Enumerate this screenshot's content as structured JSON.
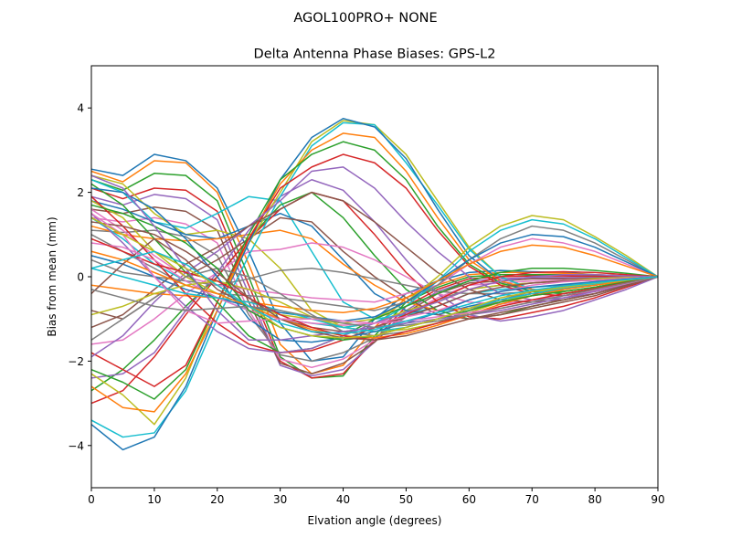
{
  "figure": {
    "suptitle": "AGOL100PRO+     NONE"
  },
  "chart_data": {
    "type": "line",
    "title": "Delta Antenna Phase Biases: GPS-L2",
    "xlabel": "Elvation angle (degrees)",
    "ylabel": "Bias from mean (mm)",
    "xlim": [
      0,
      90
    ],
    "ylim": [
      -5,
      5
    ],
    "xticks": [
      0,
      10,
      20,
      30,
      40,
      50,
      60,
      70,
      80,
      90
    ],
    "yticks": [
      -4,
      -2,
      0,
      2,
      4
    ],
    "grid": false,
    "legend": "none",
    "x": [
      0,
      5,
      10,
      15,
      20,
      25,
      30,
      35,
      40,
      45,
      50,
      55,
      60,
      65,
      70,
      75,
      80,
      85,
      90
    ],
    "palette": [
      "#1f77b4",
      "#ff7f0e",
      "#2ca02c",
      "#d62728",
      "#9467bd",
      "#8c564b",
      "#e377c2",
      "#7f7f7f",
      "#bcbd22",
      "#17becf"
    ],
    "series": [
      {
        "values": [
          2.55,
          2.4,
          2.9,
          2.75,
          2.1,
          0.6,
          -1.1,
          -2.0,
          -1.9,
          -1.0,
          -0.4,
          -0.1,
          0.1,
          0.15,
          0.12,
          0.1,
          0.05,
          0.02,
          0.0
        ]
      },
      {
        "values": [
          2.5,
          2.25,
          2.75,
          2.7,
          2.0,
          0.3,
          -1.6,
          -2.3,
          -2.1,
          -1.2,
          -0.5,
          -0.2,
          0.05,
          0.1,
          0.1,
          0.08,
          0.05,
          0.02,
          0.0
        ]
      },
      {
        "values": [
          2.3,
          2.05,
          2.45,
          2.4,
          1.8,
          0.0,
          -1.9,
          -2.4,
          -2.35,
          -1.4,
          -0.6,
          -0.25,
          0.0,
          0.05,
          0.05,
          0.05,
          0.03,
          0.01,
          0.0
        ]
      },
      {
        "values": [
          2.1,
          1.85,
          2.1,
          2.05,
          1.55,
          -0.2,
          -2.0,
          -2.4,
          -2.3,
          -1.5,
          -0.7,
          -0.3,
          -0.05,
          0.0,
          0.02,
          0.02,
          0.01,
          0.0,
          0.0
        ]
      },
      {
        "values": [
          1.9,
          1.7,
          1.95,
          1.85,
          1.35,
          -0.4,
          -2.1,
          -2.35,
          -2.2,
          -1.55,
          -0.8,
          -0.35,
          -0.1,
          -0.05,
          -0.02,
          -0.02,
          -0.02,
          -0.01,
          0.0
        ]
      },
      {
        "values": [
          1.6,
          1.5,
          1.65,
          1.55,
          1.1,
          -0.6,
          -2.05,
          -2.3,
          -2.05,
          -1.55,
          -0.85,
          -0.4,
          -0.15,
          -0.1,
          -0.05,
          -0.05,
          -0.03,
          -0.02,
          0.0
        ]
      },
      {
        "values": [
          1.4,
          1.3,
          1.4,
          1.25,
          0.8,
          -0.8,
          -1.95,
          -2.15,
          -1.95,
          -1.5,
          -0.9,
          -0.5,
          -0.2,
          -0.15,
          -0.1,
          -0.08,
          -0.05,
          -0.02,
          0.0
        ]
      },
      {
        "values": [
          1.1,
          1.05,
          1.1,
          0.95,
          0.5,
          -0.9,
          -1.85,
          -2.0,
          -1.8,
          -1.45,
          -0.95,
          -0.55,
          -0.3,
          -0.2,
          -0.15,
          -0.1,
          -0.08,
          -0.04,
          0.0
        ]
      },
      {
        "values": [
          2.4,
          2.2,
          1.5,
          1.0,
          1.1,
          0.9,
          0.2,
          -0.8,
          -1.2,
          -1.1,
          -0.8,
          -0.6,
          -0.3,
          -0.2,
          -0.15,
          -0.1,
          -0.05,
          -0.02,
          0.0
        ]
      },
      {
        "values": [
          2.3,
          2.0,
          1.3,
          1.15,
          1.5,
          1.9,
          1.8,
          0.6,
          -0.6,
          -1.0,
          -0.9,
          -0.7,
          -0.4,
          -0.3,
          -0.25,
          -0.2,
          -0.15,
          -0.08,
          0.0
        ]
      },
      {
        "values": [
          1.8,
          1.6,
          1.3,
          1.0,
          0.9,
          1.2,
          1.5,
          1.2,
          0.4,
          -0.4,
          -0.8,
          -0.9,
          -0.7,
          -0.55,
          -0.4,
          -0.3,
          -0.2,
          -0.1,
          0.0
        ]
      },
      {
        "values": [
          1.2,
          1.0,
          0.9,
          0.85,
          0.9,
          1.0,
          1.1,
          0.9,
          0.3,
          -0.2,
          -0.6,
          -0.8,
          -0.75,
          -0.6,
          -0.45,
          -0.35,
          -0.25,
          -0.12,
          0.0
        ]
      },
      {
        "values": [
          -2.7,
          -2.2,
          -1.5,
          -0.7,
          0.0,
          0.9,
          1.7,
          2.0,
          1.4,
          0.5,
          -0.3,
          -0.8,
          -1.0,
          -0.9,
          -0.7,
          -0.55,
          -0.4,
          -0.2,
          0.0
        ]
      },
      {
        "values": [
          -3.0,
          -2.7,
          -1.9,
          -0.9,
          0.0,
          0.9,
          1.6,
          2.0,
          1.8,
          1.0,
          0.1,
          -0.6,
          -0.95,
          -1.0,
          -0.85,
          -0.7,
          -0.5,
          -0.25,
          0.0
        ]
      },
      {
        "values": [
          -2.4,
          -2.3,
          -1.8,
          -0.8,
          0.1,
          1.1,
          1.9,
          2.3,
          2.05,
          1.3,
          0.4,
          -0.4,
          -0.9,
          -1.05,
          -0.95,
          -0.8,
          -0.55,
          -0.3,
          0.0
        ]
      },
      {
        "values": [
          -0.8,
          -1.0,
          -0.5,
          0.0,
          0.4,
          0.9,
          1.4,
          1.3,
          0.6,
          0.0,
          -0.5,
          -0.9,
          -1.0,
          -0.9,
          -0.75,
          -0.6,
          -0.45,
          -0.22,
          0.0
        ]
      },
      {
        "values": [
          -1.6,
          -1.5,
          -1.0,
          -0.4,
          0.1,
          0.6,
          0.65,
          0.8,
          0.7,
          0.4,
          0.0,
          -0.4,
          -0.6,
          -0.65,
          -0.55,
          -0.45,
          -0.35,
          -0.18,
          0.0
        ]
      },
      {
        "values": [
          0.4,
          0.1,
          0.0,
          -0.1,
          -0.2,
          -0.05,
          0.15,
          0.2,
          0.1,
          -0.05,
          -0.2,
          -0.35,
          -0.4,
          -0.4,
          -0.35,
          -0.3,
          -0.2,
          -0.1,
          0.0
        ]
      },
      {
        "values": [
          -2.3,
          -2.8,
          -3.5,
          -2.4,
          -0.6,
          0.8,
          2.0,
          3.2,
          3.7,
          3.6,
          2.9,
          1.8,
          0.7,
          0.0,
          -0.3,
          -0.35,
          -0.25,
          -0.12,
          0.0
        ]
      },
      {
        "values": [
          -3.4,
          -3.8,
          -3.7,
          -2.7,
          -1.0,
          0.5,
          1.9,
          3.1,
          3.65,
          3.6,
          2.7,
          1.7,
          0.65,
          0.0,
          -0.3,
          -0.35,
          -0.25,
          -0.12,
          0.0
        ]
      },
      {
        "values": [
          -3.5,
          -4.1,
          -3.8,
          -2.6,
          -0.8,
          0.8,
          2.3,
          3.3,
          3.75,
          3.55,
          2.8,
          1.6,
          0.5,
          -0.1,
          -0.35,
          -0.4,
          -0.3,
          -0.15,
          0.0
        ]
      },
      {
        "values": [
          -2.6,
          -3.1,
          -3.2,
          -2.3,
          -0.8,
          0.9,
          2.2,
          3.0,
          3.4,
          3.3,
          2.5,
          1.4,
          0.4,
          -0.1,
          -0.3,
          -0.35,
          -0.25,
          -0.12,
          0.0
        ]
      },
      {
        "values": [
          -2.2,
          -2.5,
          -2.9,
          -2.2,
          -0.6,
          1.0,
          2.3,
          2.9,
          3.2,
          3.0,
          2.3,
          1.2,
          0.3,
          -0.15,
          -0.35,
          -0.4,
          -0.3,
          -0.15,
          0.0
        ]
      },
      {
        "values": [
          -1.8,
          -2.2,
          -2.6,
          -2.1,
          -0.6,
          0.9,
          2.1,
          2.6,
          2.9,
          2.7,
          2.1,
          1.1,
          0.25,
          -0.2,
          -0.4,
          -0.45,
          -0.35,
          -0.18,
          0.0
        ]
      },
      {
        "values": [
          -1.9,
          -1.4,
          -0.6,
          0.1,
          0.6,
          1.2,
          1.8,
          2.5,
          2.6,
          2.1,
          1.3,
          0.6,
          0.0,
          -0.4,
          -0.55,
          -0.5,
          -0.4,
          -0.2,
          0.0
        ]
      },
      {
        "values": [
          -1.2,
          -0.9,
          -0.3,
          0.3,
          0.7,
          1.2,
          1.6,
          2.0,
          1.8,
          1.3,
          0.7,
          0.1,
          -0.3,
          -0.55,
          -0.6,
          -0.55,
          -0.4,
          -0.2,
          0.0
        ]
      },
      {
        "values": [
          1.6,
          1.1,
          0.5,
          0.0,
          -0.2,
          -0.3,
          -0.4,
          -0.5,
          -0.55,
          -0.6,
          -0.4,
          -0.2,
          0.3,
          0.7,
          0.9,
          0.8,
          0.6,
          0.3,
          0.0
        ]
      },
      {
        "values": [
          1.0,
          0.6,
          0.2,
          -0.2,
          -0.4,
          -0.45,
          -0.5,
          -0.6,
          -0.7,
          -0.8,
          -0.6,
          -0.2,
          0.4,
          0.9,
          1.2,
          1.1,
          0.8,
          0.4,
          0.0
        ]
      },
      {
        "values": [
          1.8,
          1.4,
          0.6,
          0.0,
          -0.4,
          -0.7,
          -0.9,
          -1.0,
          -1.1,
          -1.0,
          -0.6,
          0.0,
          0.7,
          1.2,
          1.45,
          1.35,
          0.95,
          0.5,
          0.0
        ]
      },
      {
        "values": [
          1.4,
          0.9,
          0.3,
          -0.1,
          -0.5,
          -0.8,
          -1.0,
          -1.1,
          -1.2,
          -1.1,
          -0.7,
          -0.1,
          0.6,
          1.1,
          1.35,
          1.25,
          0.9,
          0.45,
          0.0
        ]
      },
      {
        "values": [
          0.5,
          0.3,
          0.0,
          -0.3,
          -0.5,
          -0.7,
          -0.85,
          -0.95,
          -1.05,
          -0.95,
          -0.6,
          -0.1,
          0.4,
          0.8,
          1.0,
          0.95,
          0.7,
          0.35,
          0.0
        ]
      },
      {
        "values": [
          -0.2,
          -0.3,
          -0.4,
          -0.45,
          -0.5,
          -0.6,
          -0.7,
          -0.8,
          -0.85,
          -0.75,
          -0.5,
          -0.1,
          0.3,
          0.6,
          0.75,
          0.7,
          0.5,
          0.25,
          0.0
        ]
      },
      {
        "values": [
          2.2,
          1.7,
          0.9,
          0.1,
          -0.6,
          -1.4,
          -1.8,
          -1.7,
          -1.4,
          -1.0,
          -0.7,
          -0.4,
          -0.1,
          0.1,
          0.2,
          0.2,
          0.15,
          0.08,
          0.0
        ]
      },
      {
        "values": [
          1.9,
          1.2,
          0.4,
          -0.4,
          -1.1,
          -1.6,
          -1.8,
          -1.75,
          -1.5,
          -1.2,
          -0.9,
          -0.55,
          -0.2,
          0.0,
          0.1,
          0.12,
          0.1,
          0.05,
          0.0
        ]
      },
      {
        "values": [
          1.5,
          0.8,
          0.0,
          -0.7,
          -1.3,
          -1.7,
          -1.8,
          -1.7,
          -1.4,
          -1.1,
          -0.85,
          -0.6,
          -0.3,
          -0.1,
          0.0,
          0.05,
          0.05,
          0.02,
          0.0
        ]
      },
      {
        "values": [
          -0.4,
          0.3,
          0.9,
          0.4,
          -0.3,
          -0.7,
          -1.0,
          -1.2,
          -1.3,
          -1.2,
          -0.95,
          -0.7,
          -0.4,
          -0.25,
          -0.15,
          -0.1,
          -0.08,
          -0.04,
          0.0
        ]
      },
      {
        "values": [
          0.8,
          0.7,
          0.4,
          -0.1,
          -0.5,
          -0.8,
          -1.0,
          -1.1,
          -1.15,
          -1.1,
          -0.95,
          -0.8,
          -0.55,
          -0.35,
          -0.2,
          -0.12,
          -0.08,
          -0.04,
          0.0
        ]
      },
      {
        "values": [
          -1.5,
          -1.0,
          -0.5,
          0.0,
          0.2,
          0.0,
          -0.4,
          -0.9,
          -1.3,
          -1.4,
          -1.3,
          -1.1,
          -0.8,
          -0.55,
          -0.35,
          -0.2,
          -0.12,
          -0.06,
          0.0
        ]
      },
      {
        "values": [
          -0.9,
          -0.7,
          -0.4,
          -0.2,
          -0.1,
          -0.3,
          -0.6,
          -0.95,
          -1.2,
          -1.3,
          -1.25,
          -1.1,
          -0.85,
          -0.6,
          -0.4,
          -0.25,
          -0.15,
          -0.08,
          0.0
        ]
      },
      {
        "values": [
          0.2,
          0.0,
          -0.2,
          -0.4,
          -0.5,
          -0.6,
          -0.8,
          -1.0,
          -1.2,
          -1.3,
          -1.2,
          -1.0,
          -0.75,
          -0.55,
          -0.4,
          -0.28,
          -0.18,
          -0.09,
          0.0
        ]
      },
      {
        "values": [
          2.1,
          2.0,
          1.6,
          0.9,
          0.0,
          -1.0,
          -1.5,
          -1.55,
          -1.45,
          -1.3,
          -1.1,
          -0.85,
          -0.55,
          -0.35,
          -0.25,
          -0.18,
          -0.12,
          -0.06,
          0.0
        ]
      },
      {
        "values": [
          0.6,
          0.4,
          0.1,
          -0.2,
          -0.4,
          -0.7,
          -1.0,
          -1.25,
          -1.4,
          -1.45,
          -1.35,
          -1.15,
          -0.9,
          -0.65,
          -0.45,
          -0.3,
          -0.2,
          -0.1,
          0.0
        ]
      },
      {
        "values": [
          1.7,
          1.5,
          1.2,
          0.8,
          0.2,
          -0.8,
          -1.2,
          -1.4,
          -1.5,
          -1.4,
          -1.2,
          -1.0,
          -0.8,
          -0.6,
          -0.45,
          -0.35,
          -0.25,
          -0.12,
          0.0
        ]
      },
      {
        "values": [
          0.9,
          0.6,
          0.3,
          0.1,
          -0.1,
          -0.5,
          -0.9,
          -1.2,
          -1.4,
          -1.5,
          -1.3,
          -1.1,
          -0.9,
          -0.7,
          -0.55,
          -0.4,
          -0.28,
          -0.14,
          0.0
        ]
      },
      {
        "values": [
          2.4,
          2.1,
          1.2,
          0.2,
          -0.8,
          -1.5,
          -1.5,
          -1.4,
          -1.3,
          -1.2,
          -1.1,
          -1.0,
          -0.9,
          -0.8,
          -0.65,
          -0.5,
          -0.35,
          -0.18,
          0.0
        ]
      },
      {
        "values": [
          1.3,
          1.2,
          1.0,
          0.6,
          0.1,
          -0.5,
          -1.0,
          -1.3,
          -1.45,
          -1.5,
          -1.4,
          -1.2,
          -1.0,
          -0.85,
          -0.7,
          -0.55,
          -0.4,
          -0.2,
          0.0
        ]
      },
      {
        "values": [
          1.5,
          1.0,
          0.0,
          -0.8,
          -1.1,
          -1.05,
          -1.0,
          -1.0,
          -1.05,
          -1.1,
          -1.05,
          -0.95,
          -0.85,
          -0.75,
          -0.6,
          -0.45,
          -0.32,
          -0.16,
          0.0
        ]
      },
      {
        "values": [
          -0.3,
          -0.5,
          -0.7,
          -0.8,
          -0.75,
          -0.7,
          -0.8,
          -0.95,
          -1.1,
          -1.2,
          -1.15,
          -1.05,
          -0.9,
          -0.75,
          -0.6,
          -0.45,
          -0.3,
          -0.15,
          0.0
        ]
      },
      {
        "values": [
          1.4,
          1.0,
          0.6,
          0.2,
          -0.2,
          -0.7,
          -1.2,
          -1.4,
          -1.45,
          -1.4,
          -1.2,
          -1.0,
          -0.75,
          -0.5,
          -0.35,
          -0.25,
          -0.15,
          -0.08,
          0.0
        ]
      },
      {
        "values": [
          0.2,
          0.4,
          0.6,
          0.3,
          -0.2,
          -0.7,
          -1.1,
          -1.3,
          -1.35,
          -1.25,
          -1.05,
          -0.85,
          -0.65,
          -0.45,
          -0.32,
          -0.22,
          -0.14,
          -0.07,
          0.0
        ]
      }
    ]
  }
}
